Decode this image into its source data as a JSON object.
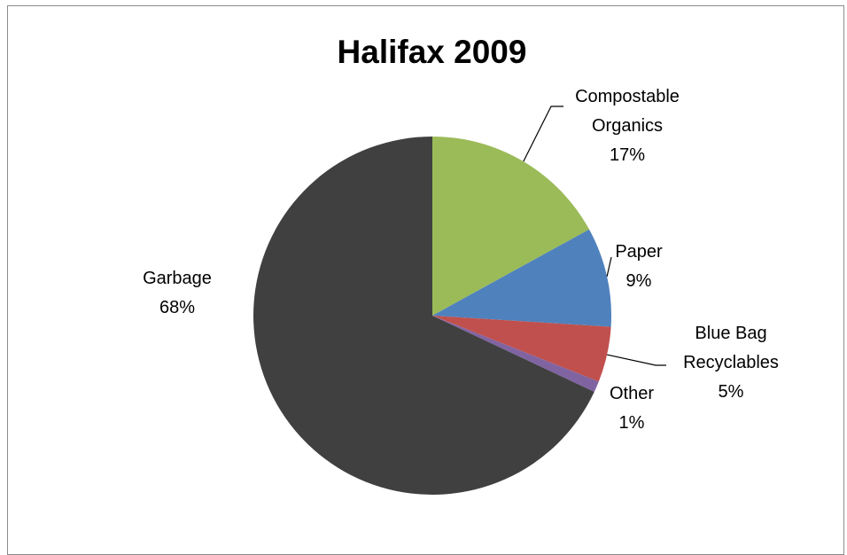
{
  "chart_data": {
    "type": "pie",
    "title": "Halifax 2009",
    "start_angle_deg": 0,
    "direction": "clockwise",
    "slices": [
      {
        "name": "Compostable Organics",
        "label_lines": [
          "Compostable",
          "Organics"
        ],
        "value": 17,
        "value_label": "17%",
        "color": "#9bbb59"
      },
      {
        "name": "Paper",
        "label_lines": [
          "Paper"
        ],
        "value": 9,
        "value_label": "9%",
        "color": "#4f81bd"
      },
      {
        "name": "Blue Bag Recyclables",
        "label_lines": [
          "Blue Bag",
          "Recyclables"
        ],
        "value": 5,
        "value_label": "5%",
        "color": "#c0504d"
      },
      {
        "name": "Other",
        "label_lines": [
          "Other"
        ],
        "value": 1,
        "value_label": "1%",
        "color": "#8064a2"
      },
      {
        "name": "Garbage",
        "label_lines": [
          "Garbage"
        ],
        "value": 68,
        "value_label": "68%",
        "color": "#404040"
      }
    ],
    "legend": "none"
  }
}
